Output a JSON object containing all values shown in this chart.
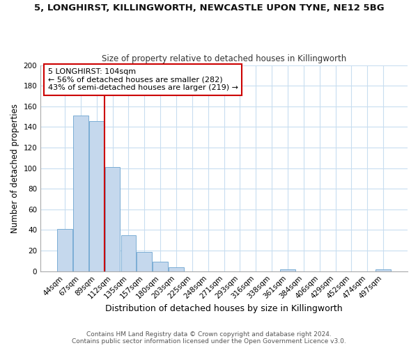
{
  "title": "5, LONGHIRST, KILLINGWORTH, NEWCASTLE UPON TYNE, NE12 5BG",
  "subtitle": "Size of property relative to detached houses in Killingworth",
  "xlabel": "Distribution of detached houses by size in Killingworth",
  "ylabel": "Number of detached properties",
  "bar_color": "#c5d8ed",
  "bar_edge_color": "#7aadd4",
  "grid_color": "#c8ddf0",
  "background_color": "#ffffff",
  "categories": [
    "44sqm",
    "67sqm",
    "89sqm",
    "112sqm",
    "135sqm",
    "157sqm",
    "180sqm",
    "203sqm",
    "225sqm",
    "248sqm",
    "271sqm",
    "293sqm",
    "316sqm",
    "338sqm",
    "361sqm",
    "384sqm",
    "406sqm",
    "429sqm",
    "452sqm",
    "474sqm",
    "497sqm"
  ],
  "values": [
    41,
    151,
    146,
    101,
    35,
    19,
    9,
    4,
    0,
    0,
    0,
    0,
    0,
    0,
    2,
    0,
    0,
    0,
    0,
    0,
    2
  ],
  "ylim": [
    0,
    200
  ],
  "yticks": [
    0,
    20,
    40,
    60,
    80,
    100,
    120,
    140,
    160,
    180,
    200
  ],
  "vline_color": "#cc0000",
  "vline_x": 2.5,
  "annotation_line1": "5 LONGHIRST: 104sqm",
  "annotation_line2": "← 56% of detached houses are smaller (282)",
  "annotation_line3": "43% of semi-detached houses are larger (219) →",
  "annotation_box_edge": "#cc0000",
  "annotation_box_bg": "#ffffff",
  "footer1": "Contains HM Land Registry data © Crown copyright and database right 2024.",
  "footer2": "Contains public sector information licensed under the Open Government Licence v3.0.",
  "title_fontsize": 9.5,
  "subtitle_fontsize": 8.5,
  "xlabel_fontsize": 9,
  "ylabel_fontsize": 8.5,
  "tick_fontsize": 7.5,
  "annotation_fontsize": 8,
  "footer_fontsize": 6.5
}
